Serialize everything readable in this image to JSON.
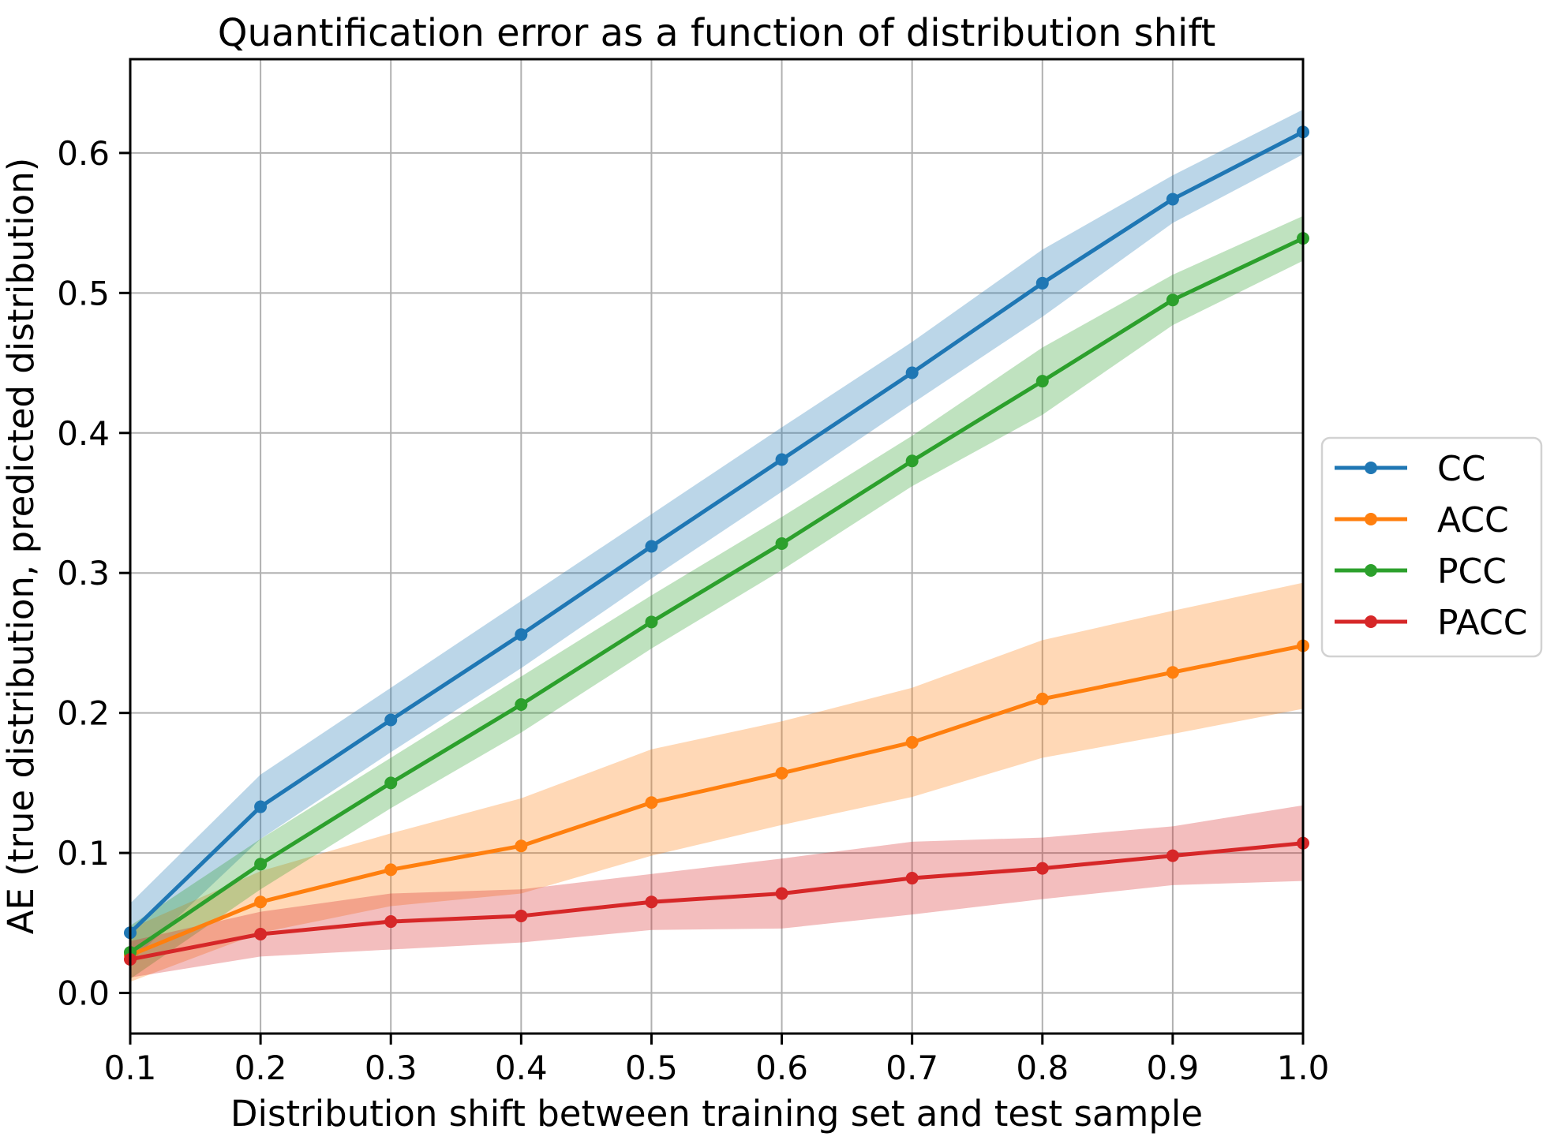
{
  "page": {
    "background": "#ffffff"
  },
  "chart_data": {
    "type": "line",
    "title": "Quantification error as a function of distribution shift",
    "xlabel": "Distribution shift between training set and test sample",
    "ylabel": "AE (true distribution, predicted distribution)",
    "grid": true,
    "grid_color": "#b0b0b0",
    "spine_color": "#000000",
    "band_alpha": 0.3,
    "xlim": [
      0.1,
      1.0
    ],
    "ylim": [
      -0.029,
      0.667
    ],
    "xticks": [
      0.1,
      0.2,
      0.3,
      0.4,
      0.5,
      0.6,
      0.7,
      0.8,
      0.9,
      1.0
    ],
    "xtick_labels": [
      "0.1",
      "0.2",
      "0.3",
      "0.4",
      "0.5",
      "0.6",
      "0.7",
      "0.8",
      "0.9",
      "1.0"
    ],
    "yticks": [
      0.0,
      0.1,
      0.2,
      0.3,
      0.4,
      0.5,
      0.6
    ],
    "ytick_labels": [
      "0.0",
      "0.1",
      "0.2",
      "0.3",
      "0.4",
      "0.5",
      "0.6"
    ],
    "x": [
      0.1,
      0.2,
      0.3,
      0.4,
      0.5,
      0.6,
      0.7,
      0.8,
      0.9,
      1.0
    ],
    "legend_position": "outside-right-center",
    "series": [
      {
        "name": "CC",
        "color": "#1f77b4",
        "values": [
          0.043,
          0.133,
          0.195,
          0.256,
          0.319,
          0.381,
          0.443,
          0.507,
          0.567,
          0.615
        ],
        "band_halfwidth": [
          0.021,
          0.023,
          0.023,
          0.024,
          0.023,
          0.023,
          0.022,
          0.024,
          0.017,
          0.016
        ]
      },
      {
        "name": "ACC",
        "color": "#ff7f0e",
        "values": [
          0.027,
          0.065,
          0.088,
          0.105,
          0.136,
          0.157,
          0.179,
          0.21,
          0.229,
          0.248
        ],
        "band_halfwidth": [
          0.019,
          0.022,
          0.026,
          0.034,
          0.038,
          0.037,
          0.039,
          0.042,
          0.044,
          0.045
        ]
      },
      {
        "name": "PCC",
        "color": "#2ca02c",
        "values": [
          0.029,
          0.092,
          0.15,
          0.206,
          0.265,
          0.321,
          0.38,
          0.437,
          0.495,
          0.539
        ],
        "band_halfwidth": [
          0.019,
          0.018,
          0.018,
          0.02,
          0.019,
          0.019,
          0.018,
          0.024,
          0.018,
          0.016
        ]
      },
      {
        "name": "PACC",
        "color": "#d62728",
        "values": [
          0.024,
          0.042,
          0.051,
          0.055,
          0.065,
          0.071,
          0.082,
          0.089,
          0.098,
          0.107
        ],
        "band_halfwidth": [
          0.013,
          0.016,
          0.02,
          0.019,
          0.02,
          0.025,
          0.026,
          0.022,
          0.021,
          0.027
        ]
      }
    ]
  }
}
